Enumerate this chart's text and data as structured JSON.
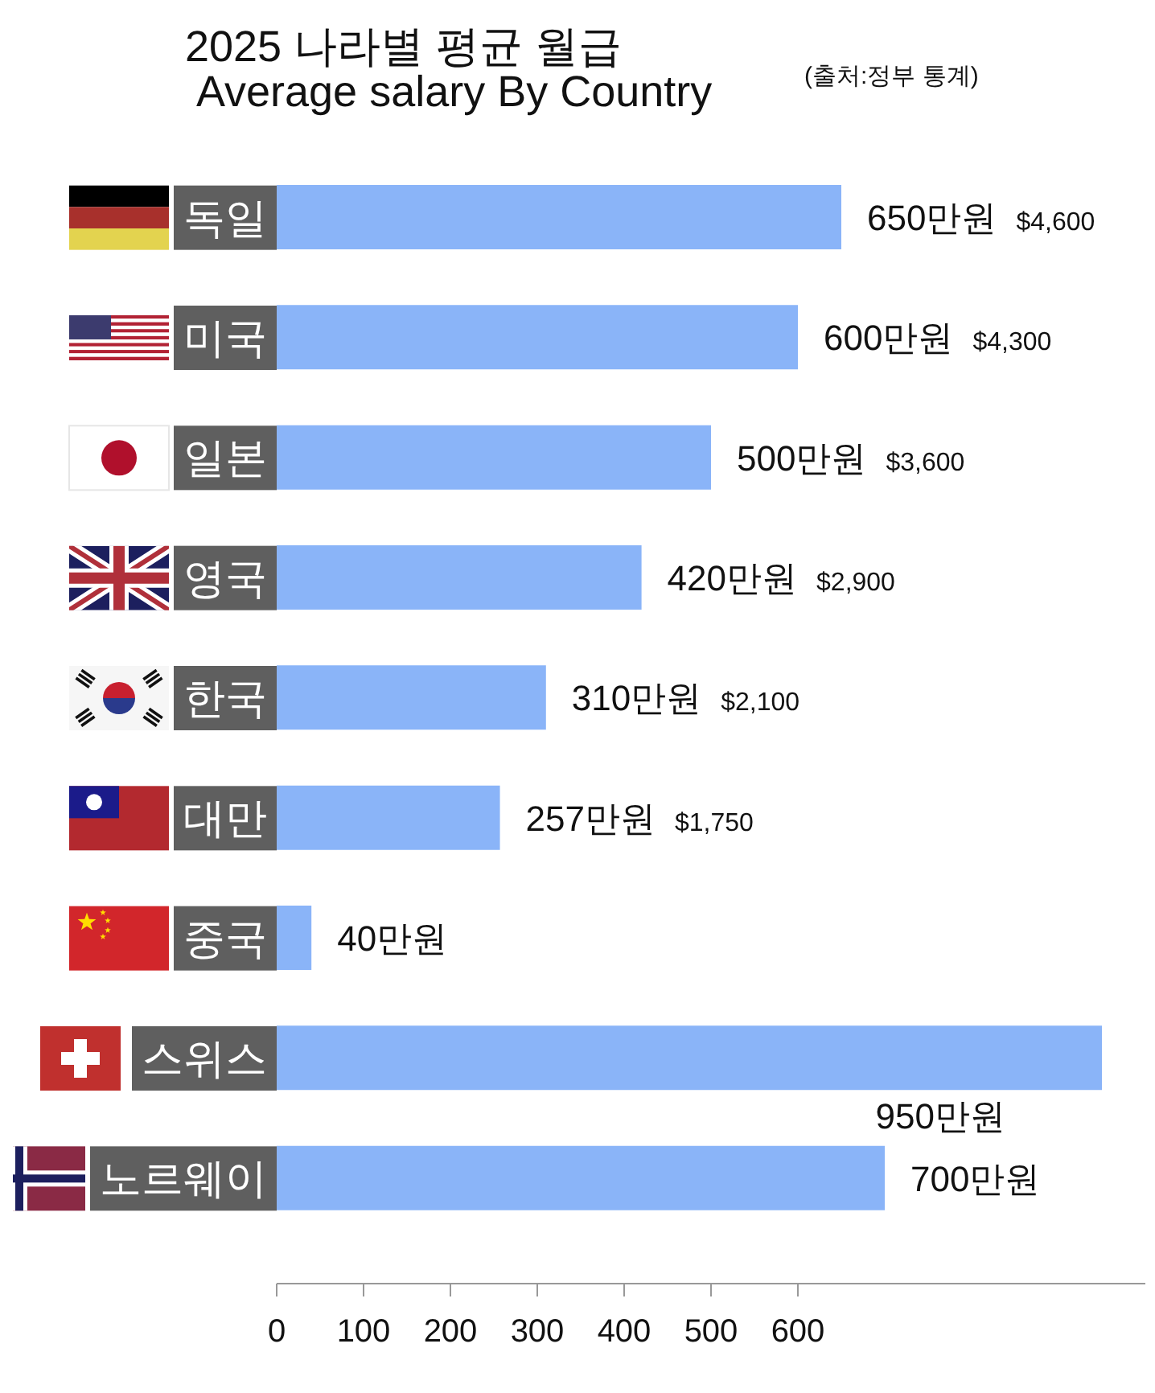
{
  "chart_data": {
    "type": "bar",
    "orientation": "horizontal",
    "title": "2025 나라별 평균 월급",
    "subtitle": "Average salary By Country",
    "categories": [
      "독일",
      "미국",
      "일본",
      "영국",
      "한국",
      "대만",
      "중국",
      "스위스",
      "노르웨이"
    ],
    "values": [
      650,
      600,
      500,
      420,
      310,
      257,
      40,
      950,
      700
    ],
    "color": "#8ab4f8",
    "value_labels": [
      "650만원 $4,600",
      "600만원 $4,300",
      "500만원 $3,600",
      "420만원 $2,900",
      "310만원 $2,100",
      "257만원 $1,750",
      "40만원",
      "950만원",
      "700만원"
    ],
    "xlim": [
      0,
      1000
    ],
    "xticks": [
      0,
      100,
      200,
      300,
      400,
      500,
      600
    ],
    "annotations": [
      "(출처:정부 통계)"
    ]
  }
}
